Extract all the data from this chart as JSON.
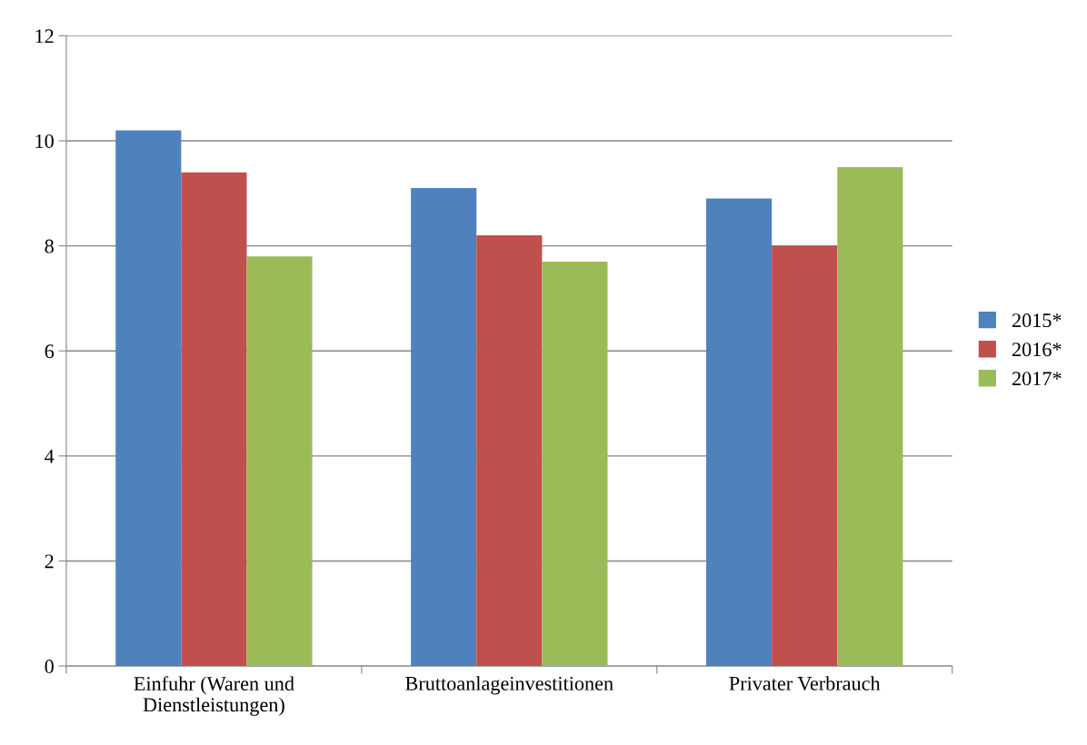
{
  "chart_data": {
    "type": "bar",
    "categories": [
      "Einfuhr (Waren und\nDienstleistungen)",
      "Bruttoanlageinvestitionen",
      "Privater Verbrauch"
    ],
    "series": [
      {
        "name": "2015*",
        "color": "#4f81bd",
        "values": [
          10.2,
          9.1,
          8.9
        ]
      },
      {
        "name": "2016*",
        "color": "#c0504d",
        "values": [
          9.4,
          8.2,
          8.0
        ]
      },
      {
        "name": "2017*",
        "color": "#9bbb59",
        "values": [
          7.8,
          7.7,
          9.5
        ]
      }
    ],
    "ylim": [
      0,
      12
    ],
    "yticks": [
      0,
      2,
      4,
      6,
      8,
      10,
      12
    ],
    "grid": "y",
    "legend": "right"
  }
}
